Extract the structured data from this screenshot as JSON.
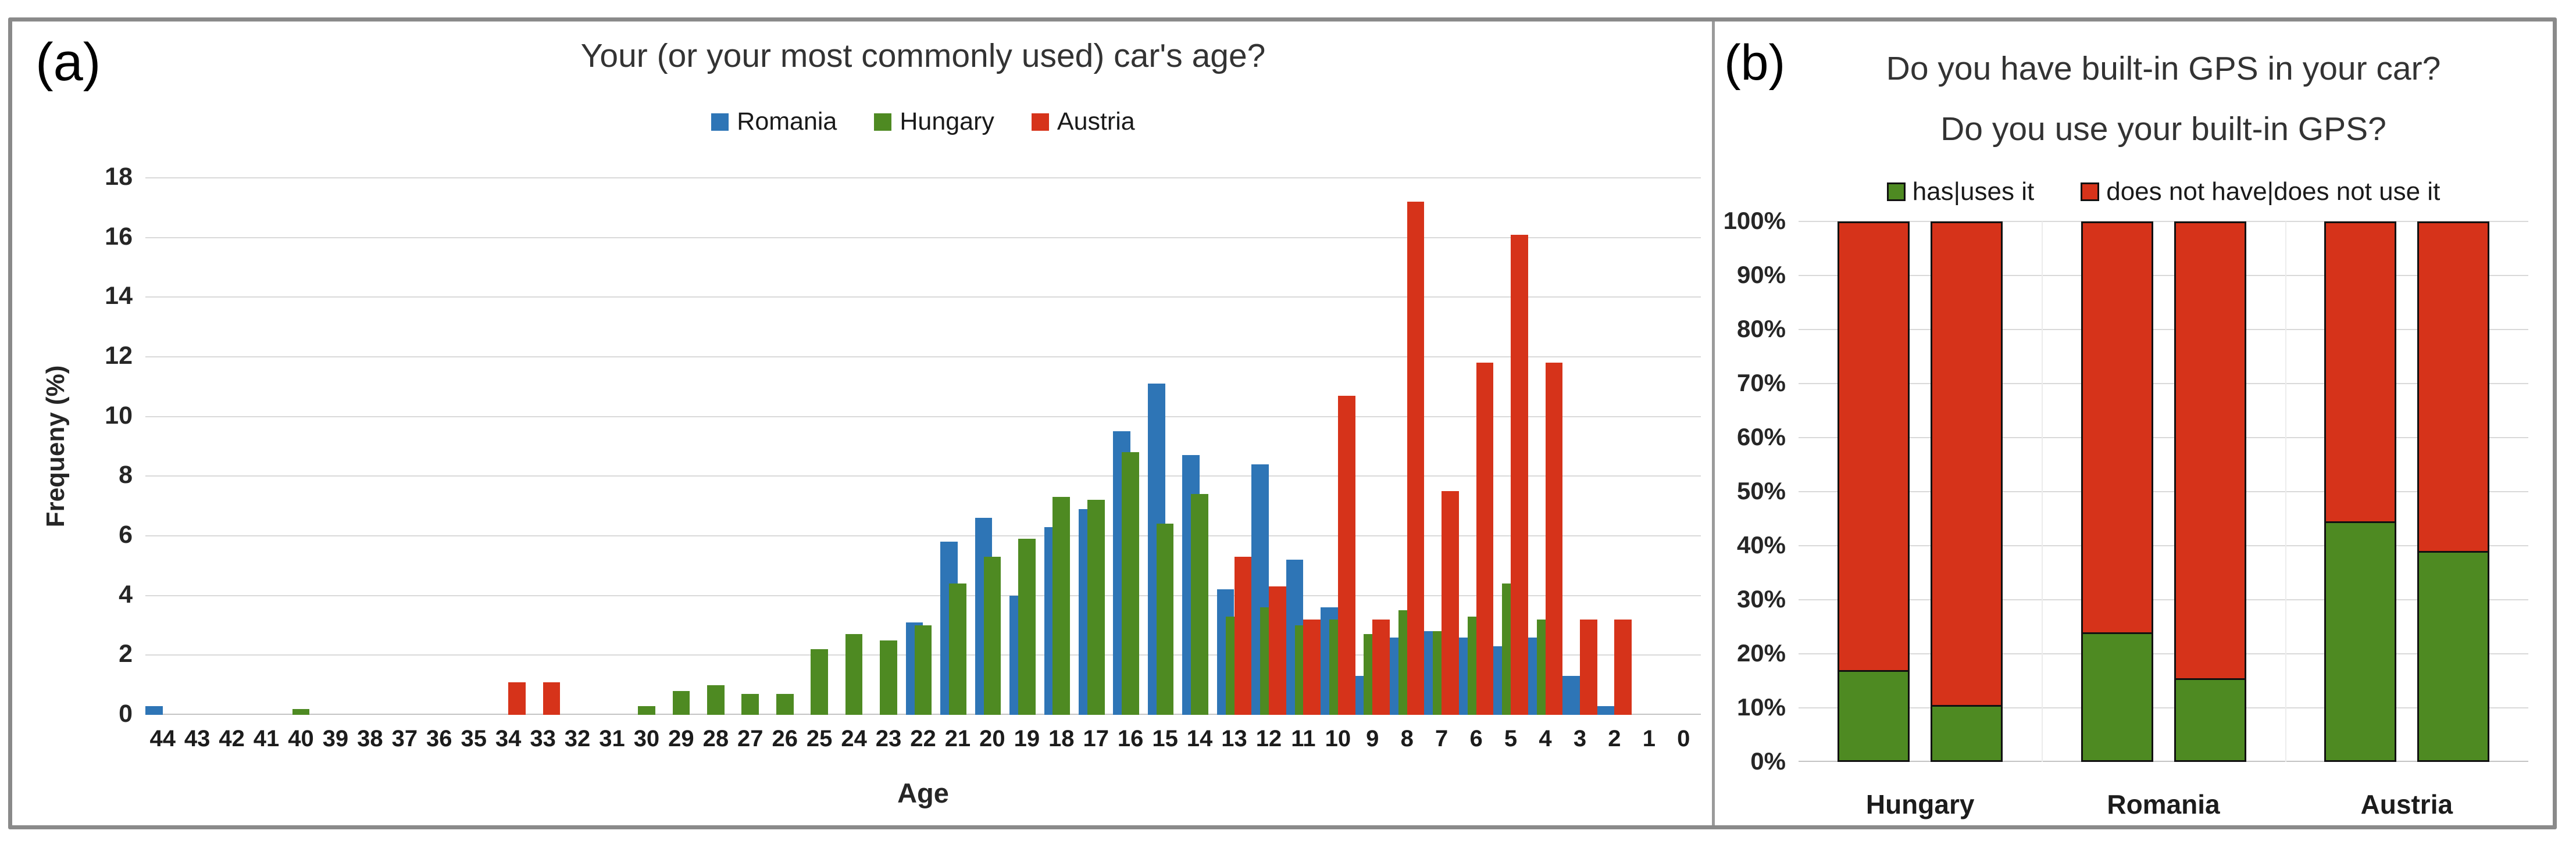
{
  "colors": {
    "romania_blue": "#2E75B6",
    "hungary_green": "#4E8A22",
    "austria_red": "#D6331A",
    "gridline": "#D9D9D9",
    "frame_border": "#8A8A8A",
    "stacked_bar_outline": "#111111"
  },
  "panel_a": {
    "label": "(a)",
    "title": "Your (or your most commonly used) car's age?",
    "xlabel": "Age",
    "ylabel": "Frequeny (%)"
  },
  "panel_b": {
    "label": "(b)",
    "title_line1": "Do you have built-in GPS in your car?",
    "title_line2": "Do you use your built-in GPS?"
  },
  "chart_data": [
    {
      "type": "bar",
      "panel": "a",
      "title": "Your (or your most commonly used) car's age?",
      "xlabel": "Age",
      "ylabel": "Frequeny (%)",
      "ylim": [
        0,
        18
      ],
      "yticks": [
        18,
        16,
        14,
        12,
        10,
        8,
        6,
        4,
        2,
        0
      ],
      "grid": true,
      "legend_position": "top",
      "categories": [
        44,
        43,
        42,
        41,
        40,
        39,
        38,
        37,
        36,
        35,
        34,
        33,
        32,
        31,
        30,
        29,
        28,
        27,
        26,
        25,
        24,
        23,
        22,
        21,
        20,
        19,
        18,
        17,
        16,
        15,
        14,
        13,
        12,
        11,
        10,
        9,
        8,
        7,
        6,
        5,
        4,
        3,
        2,
        1,
        0
      ],
      "series": [
        {
          "name": "Romania",
          "color": "#2E75B6",
          "values": [
            0.3,
            null,
            null,
            null,
            null,
            null,
            null,
            null,
            null,
            null,
            null,
            null,
            null,
            null,
            null,
            null,
            null,
            null,
            null,
            null,
            null,
            null,
            3.1,
            5.8,
            6.6,
            4.0,
            6.3,
            6.9,
            9.5,
            11.1,
            8.7,
            4.2,
            8.4,
            5.2,
            3.6,
            1.3,
            2.6,
            2.8,
            2.6,
            2.3,
            2.6,
            1.3,
            0.3,
            null,
            null
          ]
        },
        {
          "name": "Hungary",
          "color": "#4E8A22",
          "values": [
            null,
            null,
            null,
            null,
            0.2,
            null,
            null,
            null,
            null,
            null,
            null,
            null,
            null,
            null,
            0.3,
            0.8,
            1.0,
            0.7,
            0.7,
            2.2,
            2.7,
            2.5,
            3.0,
            4.4,
            5.3,
            5.9,
            7.3,
            7.2,
            8.8,
            6.4,
            7.4,
            3.3,
            3.6,
            3.0,
            3.2,
            2.7,
            3.5,
            2.8,
            3.3,
            4.4,
            3.2,
            null,
            null,
            null,
            null
          ]
        },
        {
          "name": "Austria",
          "color": "#D6331A",
          "values": [
            null,
            null,
            null,
            null,
            null,
            null,
            null,
            null,
            null,
            null,
            1.1,
            1.1,
            null,
            null,
            null,
            null,
            null,
            null,
            null,
            null,
            null,
            null,
            null,
            null,
            null,
            null,
            null,
            null,
            null,
            null,
            null,
            5.3,
            4.3,
            3.2,
            10.7,
            3.2,
            17.2,
            7.5,
            11.8,
            16.1,
            11.8,
            3.2,
            3.2,
            null,
            null
          ]
        }
      ]
    },
    {
      "type": "stacked-bar-100",
      "panel": "b",
      "title": [
        "Do you have built-in GPS in your car?",
        "Do you use your built-in GPS?"
      ],
      "yticks": [
        "100%",
        "90%",
        "80%",
        "70%",
        "60%",
        "50%",
        "40%",
        "30%",
        "20%",
        "10%",
        "0%"
      ],
      "grid": true,
      "legend": [
        {
          "name": "has|uses it",
          "color": "#4E8A22"
        },
        {
          "name": "does not have|does not use it",
          "color": "#D6331A"
        }
      ],
      "categories": [
        "Hungary",
        "Romania",
        "Austria"
      ],
      "bars_per_category": [
        "has built-in GPS",
        "uses built-in GPS"
      ],
      "groups": [
        {
          "label": "Hungary",
          "green_pct": [
            17,
            10.5
          ],
          "red_pct": [
            83,
            89.5
          ]
        },
        {
          "label": "Romania",
          "green_pct": [
            24,
            15.5
          ],
          "red_pct": [
            76,
            84.5
          ]
        },
        {
          "label": "Austria",
          "green_pct": [
            44.5,
            39
          ],
          "red_pct": [
            55.5,
            61
          ]
        }
      ]
    }
  ]
}
